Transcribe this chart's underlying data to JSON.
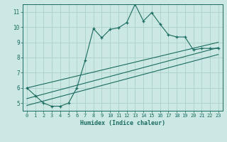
{
  "title": "",
  "xlabel": "Humidex (Indice chaleur)",
  "bg_color": "#cce8e4",
  "grid_color": "#aad0cc",
  "line_color": "#1a6b60",
  "xlim": [
    -0.5,
    23.5
  ],
  "ylim": [
    4.5,
    11.5
  ],
  "xticks": [
    0,
    1,
    2,
    3,
    4,
    5,
    6,
    7,
    8,
    9,
    10,
    11,
    12,
    13,
    14,
    15,
    16,
    17,
    18,
    19,
    20,
    21,
    22,
    23
  ],
  "yticks": [
    5,
    6,
    7,
    8,
    9,
    10,
    11
  ],
  "main_x": [
    0,
    1,
    2,
    3,
    4,
    5,
    6,
    7,
    8,
    9,
    10,
    11,
    12,
    13,
    14,
    15,
    16,
    17,
    18,
    19,
    20,
    21,
    22,
    23
  ],
  "main_y": [
    6.0,
    5.5,
    5.0,
    4.8,
    4.8,
    5.0,
    6.0,
    7.8,
    9.9,
    9.3,
    9.85,
    9.95,
    10.3,
    11.5,
    10.4,
    10.95,
    10.2,
    9.5,
    9.35,
    9.35,
    8.5,
    8.6,
    8.6,
    8.6
  ],
  "trend1_x": [
    0,
    23
  ],
  "trend1_y": [
    6.0,
    9.0
  ],
  "trend2_x": [
    0,
    23
  ],
  "trend2_y": [
    5.3,
    8.65
  ],
  "trend3_x": [
    0,
    23
  ],
  "trend3_y": [
    4.85,
    8.2
  ]
}
